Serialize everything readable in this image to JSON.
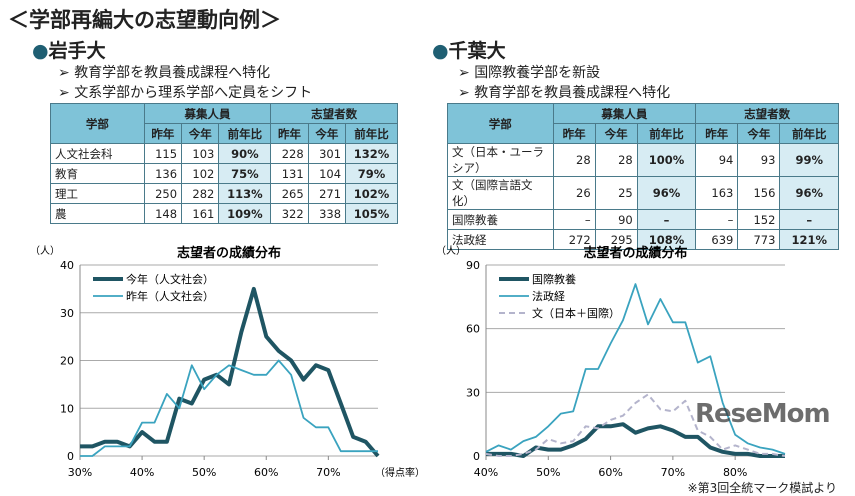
{
  "title": "＜学部再編大の志望動向例＞",
  "left": {
    "university": "岩手大",
    "bullets": [
      "教育学部を教員養成課程へ特化",
      "文系学部から理系学部へ定員をシフト"
    ],
    "table": {
      "headers": {
        "dept": "学部",
        "group1": "募集人員",
        "group2": "志望者数",
        "last": "昨年",
        "this": "今年",
        "ratio": "前年比"
      },
      "rows": [
        [
          "人文社会科",
          "115",
          "103",
          "90%",
          "228",
          "301",
          "132%"
        ],
        [
          "教育",
          "136",
          "102",
          "75%",
          "131",
          "104",
          "79%"
        ],
        [
          "理工",
          "250",
          "282",
          "113%",
          "265",
          "271",
          "102%"
        ],
        [
          "農",
          "148",
          "161",
          "109%",
          "322",
          "338",
          "105%"
        ]
      ]
    }
  },
  "right": {
    "university": "千葉大",
    "bullets": [
      "国際教養学部を新設",
      "教育学部を教員養成課程へ特化"
    ],
    "table": {
      "headers": {
        "dept": "学部",
        "group1": "募集人員",
        "group2": "志望者数",
        "last": "昨年",
        "this": "今年",
        "ratio": "前年比"
      },
      "rows": [
        [
          "文（日本・ユーラシア）",
          "28",
          "28",
          "100%",
          "94",
          "93",
          "99%"
        ],
        [
          "文（国際言語文化）",
          "26",
          "25",
          "96%",
          "163",
          "156",
          "96%"
        ],
        [
          "国際教養",
          "–",
          "90",
          "–",
          "–",
          "152",
          "–"
        ],
        [
          "法政経",
          "272",
          "295",
          "108%",
          "639",
          "773",
          "121%"
        ]
      ]
    }
  },
  "chart_data": [
    {
      "type": "line",
      "title": "志望者の成績分布",
      "ylabel": "（人）",
      "xlabel": "（得点率）",
      "ylim": [
        0,
        40
      ],
      "yticks": [
        0,
        10,
        20,
        30,
        40
      ],
      "xlim": [
        30,
        78
      ],
      "xticks": [
        "30%",
        "40%",
        "50%",
        "60%",
        "70%"
      ],
      "xtick_values": [
        30,
        40,
        50,
        60,
        70
      ],
      "grid": "horizontal",
      "legend": "top-left",
      "x": [
        30,
        32,
        34,
        36,
        38,
        40,
        42,
        44,
        46,
        48,
        50,
        52,
        54,
        56,
        58,
        60,
        62,
        64,
        66,
        68,
        70,
        72,
        74,
        76,
        78
      ],
      "series": [
        {
          "name": "今年（人文社会）",
          "color": "#1f5563",
          "width": 4,
          "dash": "",
          "values": [
            2,
            2,
            3,
            3,
            2,
            5,
            3,
            3,
            12,
            11,
            16,
            17,
            15,
            26,
            35,
            25,
            22,
            20,
            16,
            19,
            18,
            11,
            4,
            3,
            0
          ]
        },
        {
          "name": "昨年（人文社会）",
          "color": "#3aa3bf",
          "width": 1.8,
          "dash": "",
          "values": [
            0,
            0,
            2,
            2,
            2,
            7,
            7,
            13,
            10,
            19,
            14,
            17,
            19,
            18,
            17,
            17,
            20,
            17,
            8,
            6,
            6,
            1,
            1,
            1,
            1
          ]
        }
      ]
    },
    {
      "type": "line",
      "title": "志望者の成績分布",
      "ylabel": "（人）",
      "xlabel": "",
      "ylim": [
        0,
        90
      ],
      "yticks": [
        0,
        30,
        60,
        90
      ],
      "xlim": [
        40,
        88
      ],
      "xticks": [
        "40%",
        "50%",
        "60%",
        "70%",
        "80%"
      ],
      "xtick_values": [
        40,
        50,
        60,
        70,
        80
      ],
      "grid": "horizontal",
      "legend": "top-left",
      "x": [
        40,
        42,
        44,
        46,
        48,
        50,
        52,
        54,
        56,
        58,
        60,
        62,
        64,
        66,
        68,
        70,
        72,
        74,
        76,
        78,
        80,
        82,
        84,
        86,
        88
      ],
      "series": [
        {
          "name": "国際教養",
          "color": "#1f5563",
          "width": 4,
          "dash": "",
          "values": [
            1,
            1,
            1,
            0,
            4,
            3,
            3,
            5,
            8,
            14,
            14,
            15,
            11,
            13,
            14,
            12,
            9,
            9,
            4,
            2,
            1,
            1,
            0,
            0,
            0
          ]
        },
        {
          "name": "法政経",
          "color": "#3aa3bf",
          "width": 1.8,
          "dash": "",
          "values": [
            2,
            5,
            3,
            7,
            9,
            14,
            20,
            21,
            41,
            41,
            53,
            64,
            81,
            62,
            74,
            63,
            63,
            44,
            47,
            25,
            10,
            6,
            4,
            3,
            1
          ]
        },
        {
          "name": "文（日本＋国際）",
          "color": "#b4b4cc",
          "width": 2,
          "dash": "6,4",
          "values": [
            1,
            0,
            0,
            1,
            3,
            8,
            6,
            7,
            14,
            13,
            17,
            19,
            25,
            29,
            22,
            21,
            26,
            12,
            9,
            3,
            5,
            3,
            1,
            1,
            0
          ]
        }
      ]
    }
  ],
  "footnote": "※第3回全統マーク模試より",
  "logo": "ReseMom"
}
